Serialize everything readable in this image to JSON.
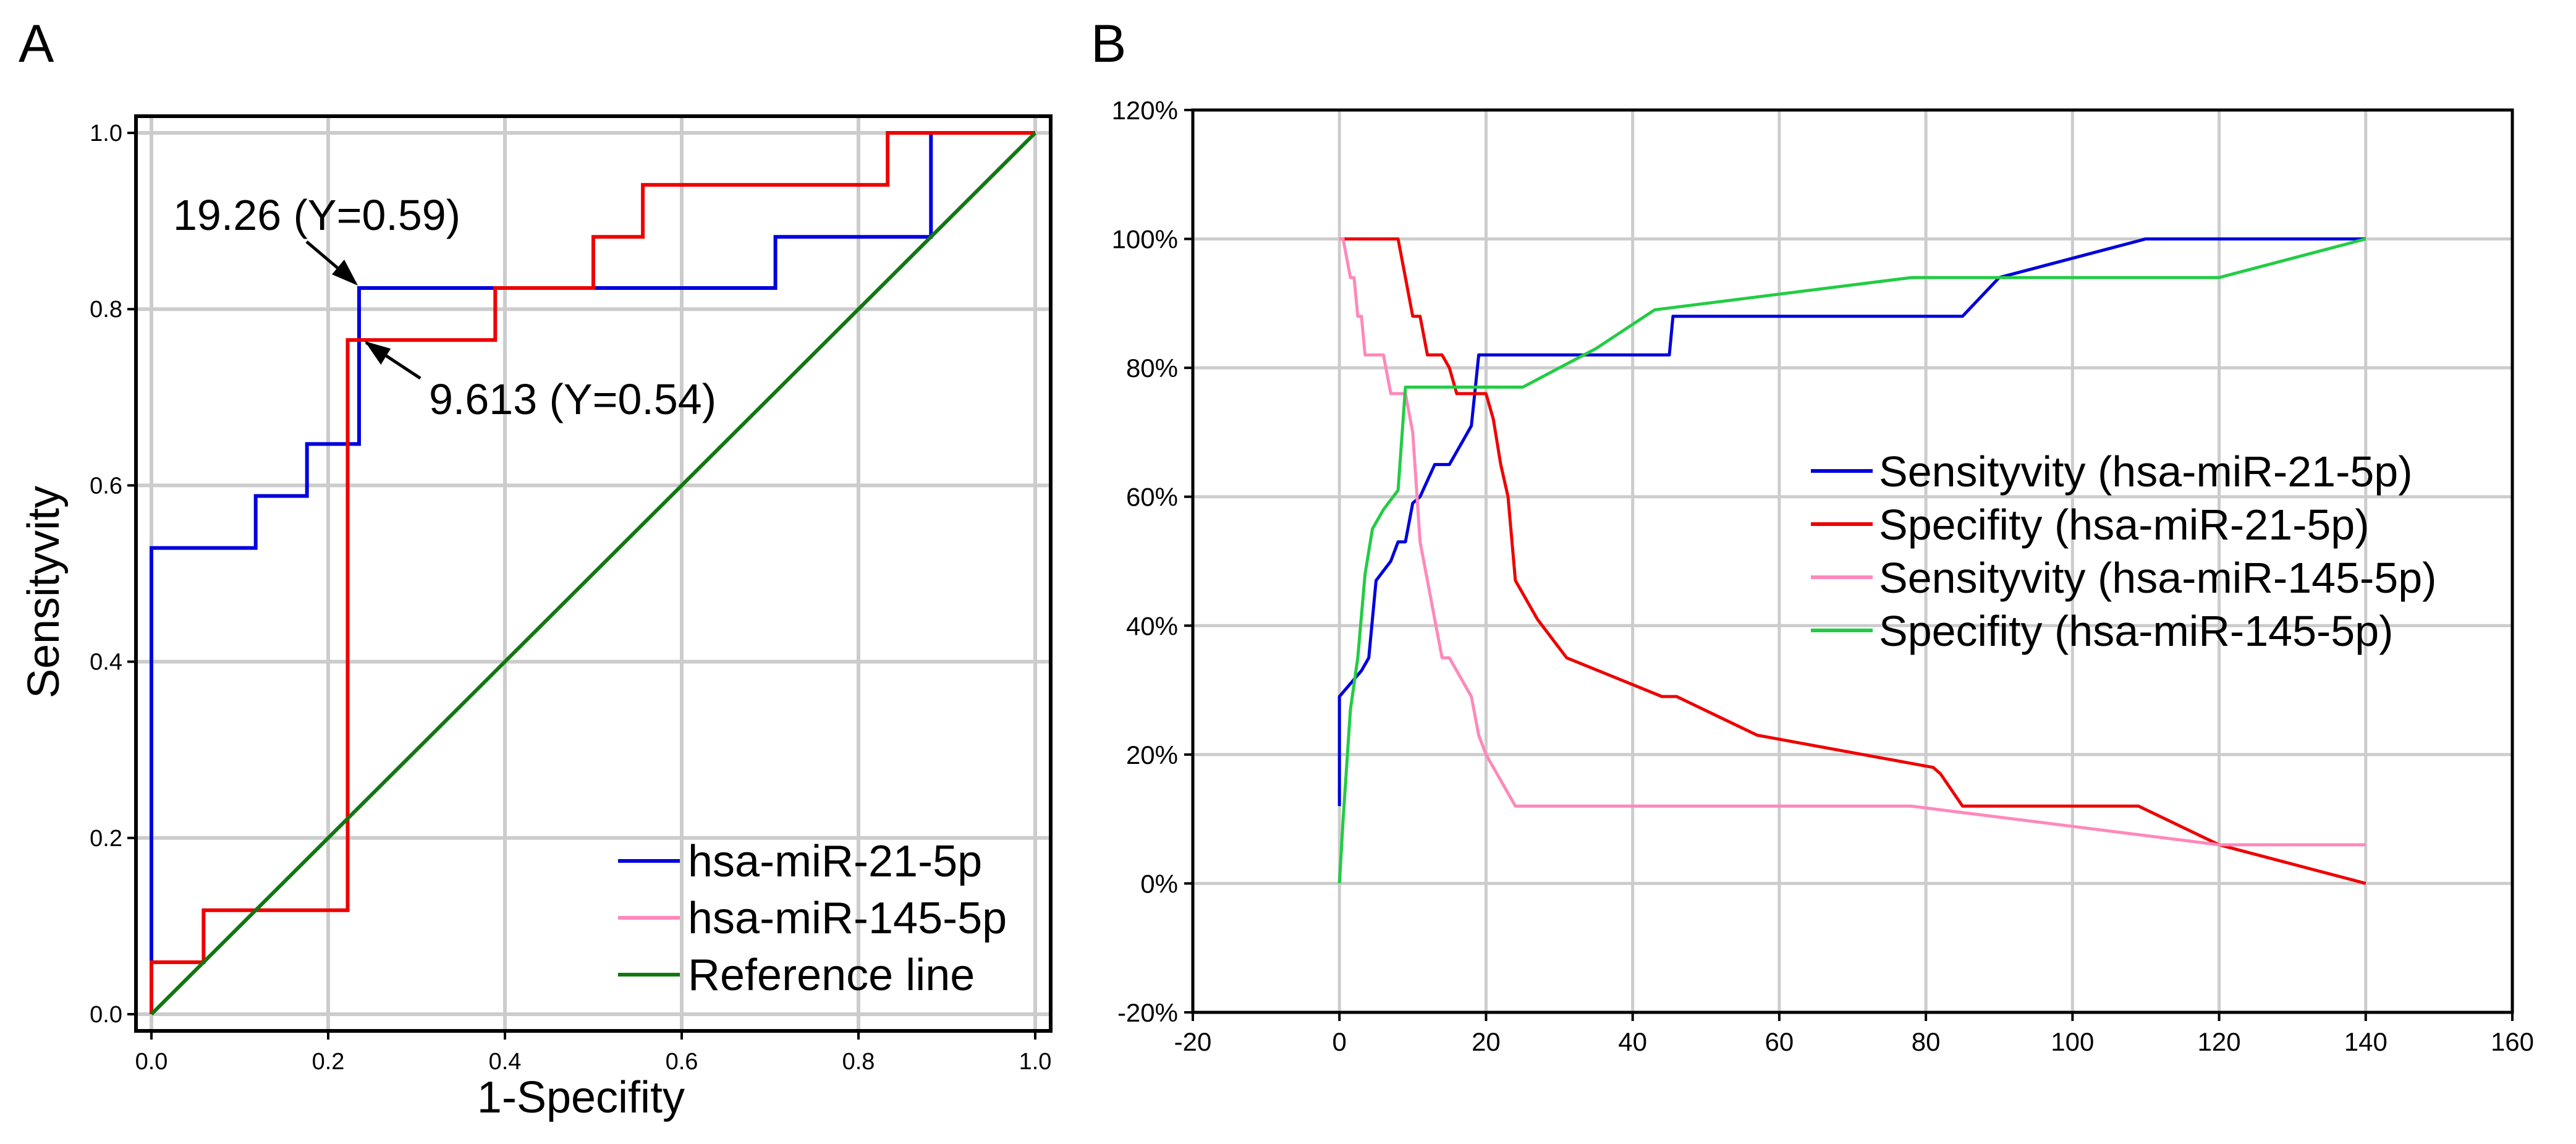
{
  "chart_data": [
    {
      "panel": "A",
      "type": "line",
      "xlabel": "1-Specifity",
      "ylabel": "Sensityvity",
      "xlim": [
        0,
        1
      ],
      "ylim": [
        0,
        1
      ],
      "grid": true,
      "x_ticks": [
        "0.0",
        "0.2",
        "0.4",
        "0.6",
        "0.8",
        "1.0"
      ],
      "y_ticks": [
        "0.0",
        "0.2",
        "0.4",
        "0.6",
        "0.8",
        "1.0"
      ],
      "legend_position": "bottom-right",
      "series": [
        {
          "name": "hsa-miR-21-5p",
          "color": "#0000dd",
          "step": true,
          "x": [
            0,
            0,
            0.118,
            0.118,
            0.176,
            0.176,
            0.235,
            0.235,
            0.706,
            0.706,
            0.882,
            0.882,
            1.0
          ],
          "y": [
            0,
            0.529,
            0.529,
            0.588,
            0.588,
            0.647,
            0.647,
            0.824,
            0.824,
            0.882,
            0.882,
            1.0,
            1.0
          ]
        },
        {
          "name": "hsa-miR-145-5p",
          "color": "#ee0000",
          "legend_color": "#ff88bb",
          "step": true,
          "x": [
            0,
            0,
            0.059,
            0.059,
            0.222,
            0.222,
            0.389,
            0.389,
            0.5,
            0.5,
            0.556,
            0.556,
            0.833,
            0.833,
            1.0
          ],
          "y": [
            0,
            0.059,
            0.059,
            0.118,
            0.118,
            0.765,
            0.765,
            0.824,
            0.824,
            0.882,
            0.882,
            0.941,
            0.941,
            1.0,
            1.0
          ]
        },
        {
          "name": "Reference line",
          "color": "#117711",
          "x": [
            0,
            1
          ],
          "y": [
            0,
            1
          ]
        }
      ],
      "annotations": [
        {
          "text": "19.26 (Y=0.59)",
          "point": [
            0.235,
            0.824
          ]
        },
        {
          "text": "9.613 (Y=0.54)",
          "point": [
            0.24,
            0.765
          ]
        }
      ]
    },
    {
      "panel": "B",
      "type": "line",
      "xlabel": "",
      "ylabel": "",
      "xlim": [
        -20,
        160
      ],
      "ylim": [
        -20,
        120
      ],
      "grid": true,
      "x_ticks": [
        "-20",
        "0",
        "20",
        "40",
        "60",
        "80",
        "100",
        "120",
        "140",
        "160"
      ],
      "y_ticks": [
        "-20%",
        "0%",
        "20%",
        "40%",
        "60%",
        "80%",
        "100%",
        "120%"
      ],
      "legend_position": "center-right",
      "series": [
        {
          "name": "Sensityvity (hsa-miR-21-5p)",
          "color": "#0000dd",
          "x": [
            0,
            0,
            3,
            4,
            5,
            7,
            8,
            9,
            10,
            11,
            13,
            15,
            17,
            18,
            19,
            21,
            45,
            45.5,
            85,
            90,
            110,
            140
          ],
          "y": [
            12,
            29,
            33,
            35,
            47,
            50,
            53,
            53,
            59,
            60,
            65,
            65,
            69,
            71,
            82,
            82,
            82,
            88,
            88,
            94,
            100,
            100
          ]
        },
        {
          "name": "Specifity (hsa-miR-21-5p)",
          "color": "#ee0000",
          "x": [
            0,
            8,
            9,
            10,
            11,
            12,
            14,
            15,
            16,
            20,
            21,
            22,
            23,
            24,
            25,
            27,
            31,
            44,
            46,
            57,
            81,
            82,
            85,
            109,
            120,
            140
          ],
          "y": [
            100,
            100,
            94,
            88,
            88,
            82,
            82,
            80,
            76,
            76,
            72,
            65,
            60,
            47,
            45,
            41,
            35,
            29,
            29,
            23,
            18,
            17,
            12,
            12,
            6,
            0
          ],
          "legend_display_color": "#ee0000"
        },
        {
          "name": "Sensityvity (hsa-miR-145-5p)",
          "color": "#ff88bb",
          "x": [
            0,
            0.5,
            1.5,
            2,
            2.5,
            3,
            3.5,
            4,
            6,
            7,
            8,
            9,
            10,
            11,
            12,
            13,
            14,
            15,
            18,
            19,
            20,
            24,
            78,
            120,
            140
          ],
          "y": [
            100,
            100,
            94,
            94,
            88,
            88,
            82,
            82,
            82,
            76,
            76,
            76,
            70,
            53,
            47,
            41,
            35,
            35,
            29,
            23,
            20,
            12,
            12,
            6,
            6
          ]
        },
        {
          "name": "Specifity  (hsa-miR-145-5p)",
          "color": "#22cc44",
          "x": [
            0,
            0.5,
            1.5,
            2.5,
            3.5,
            4.5,
            5,
            6,
            8,
            9,
            10,
            20,
            25,
            35,
            43,
            78,
            90,
            120,
            140
          ],
          "y": [
            0,
            10,
            27,
            35,
            48,
            55,
            56,
            58,
            61,
            77,
            77,
            77,
            77,
            83,
            89,
            94,
            94,
            94,
            100
          ]
        }
      ]
    }
  ]
}
